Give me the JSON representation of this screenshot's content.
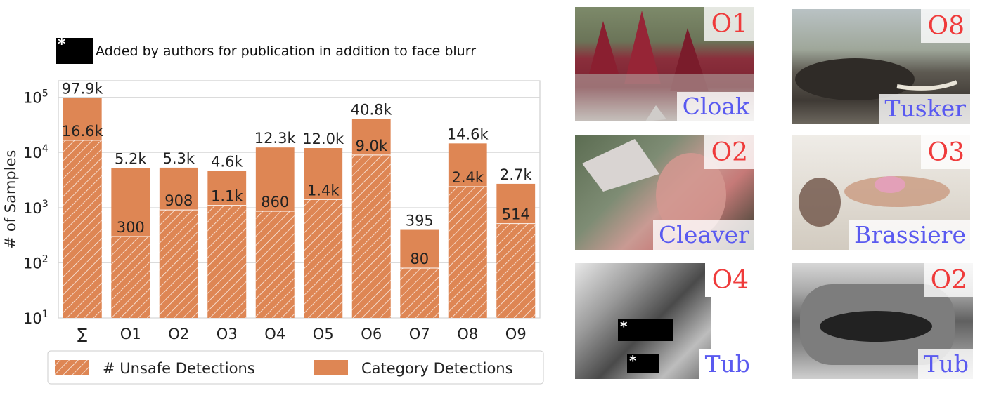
{
  "note": {
    "marker": "*",
    "text": "Added by authors for publication in addition to face blurr"
  },
  "chart_data": {
    "type": "bar",
    "scale": "log",
    "ylabel": "# of Samples",
    "ylim": [
      10,
      200000
    ],
    "yticks": [
      {
        "value": 10,
        "base": "10",
        "exp": "1"
      },
      {
        "value": 100,
        "base": "10",
        "exp": "2"
      },
      {
        "value": 1000,
        "base": "10",
        "exp": "3"
      },
      {
        "value": 10000,
        "base": "10",
        "exp": "4"
      },
      {
        "value": 100000,
        "base": "10",
        "exp": "5"
      }
    ],
    "categories": [
      "∑",
      "O1",
      "O2",
      "O3",
      "O4",
      "O5",
      "O6",
      "O7",
      "O8",
      "O9"
    ],
    "grid": true,
    "legend_position": "bottom",
    "series": [
      {
        "name": "# Unsafe Detections",
        "style": "hatched",
        "values": [
          16600,
          300,
          908,
          1100,
          860,
          1400,
          9000,
          80,
          2400,
          514
        ],
        "labels": [
          "16.6k",
          "300",
          "908",
          "1.1k",
          "860",
          "1.4k",
          "9.0k",
          "80",
          "2.4k",
          "514"
        ]
      },
      {
        "name": "Category Detections",
        "style": "solid",
        "values": [
          97900,
          5200,
          5300,
          4600,
          12300,
          12000,
          40800,
          395,
          14600,
          2700
        ],
        "labels": [
          "97.9k",
          "5.2k",
          "5.3k",
          "4.6k",
          "12.3k",
          "12.0k",
          "40.8k",
          "395",
          "14.6k",
          "2.7k"
        ]
      }
    ],
    "colors": {
      "bar": "#de8654",
      "grid": "#d6d6d6",
      "axis": "#cfcfcf"
    }
  },
  "panels": [
    {
      "tag": "O1",
      "label": "Cloak"
    },
    {
      "tag": "O8",
      "label": "Tusker"
    },
    {
      "tag": "O2",
      "label": "Cleaver"
    },
    {
      "tag": "O3",
      "label": "Brassiere"
    },
    {
      "tag": "O4",
      "label": "Tub",
      "censor_marker": "*"
    },
    {
      "tag": "O2",
      "label": "Tub"
    }
  ]
}
